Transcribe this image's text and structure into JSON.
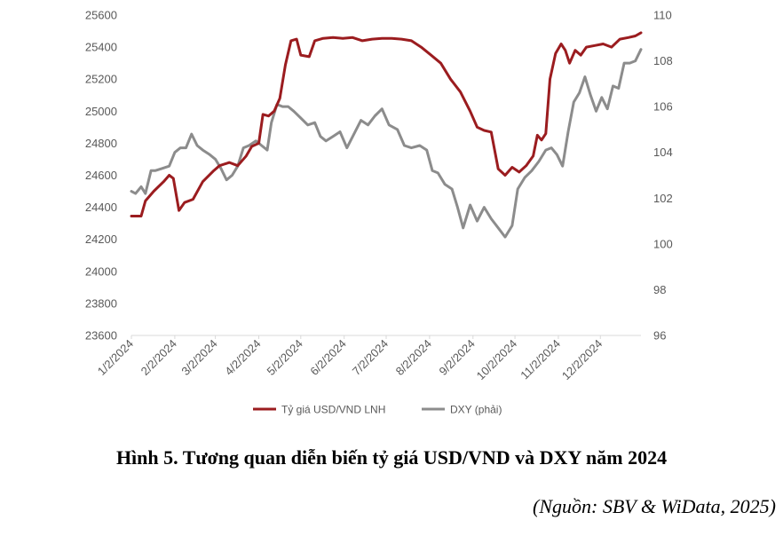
{
  "caption": "Hình 5. Tương quan diễn biến tỷ giá USD/VND và DXY năm 2024",
  "source": "(Nguồn: SBV & WiData, 2025)",
  "chart_data": {
    "type": "line",
    "title": "",
    "grid": false,
    "legend_position": "bottom-center",
    "x_tick_labels": [
      "1/2/2024",
      "2/2/2024",
      "3/2/2024",
      "4/2/2024",
      "5/2/2024",
      "6/2/2024",
      "7/2/2024",
      "8/2/2024",
      "9/2/2024",
      "10/2/2024",
      "11/2/2024",
      "12/2/2024"
    ],
    "x_range": [
      "2024-01-02",
      "2024-12-31"
    ],
    "y_left": {
      "ylim": [
        23600,
        25600
      ],
      "ticks": [
        "23600",
        "23800",
        "24000",
        "24200",
        "24400",
        "24600",
        "24800",
        "25000",
        "25200",
        "25400",
        "25600"
      ]
    },
    "y_right": {
      "ylim": [
        96,
        110
      ],
      "ticks": [
        "96",
        "98",
        "100",
        "102",
        "104",
        "106",
        "108",
        "110"
      ]
    },
    "series": [
      {
        "name": "Tỷ giá USD/VND LNH",
        "axis": "left",
        "color": "#9b1c1f",
        "points": [
          [
            "2024-01-02",
            24345
          ],
          [
            "2024-01-09",
            24345
          ],
          [
            "2024-01-12",
            24440
          ],
          [
            "2024-01-18",
            24500
          ],
          [
            "2024-01-25",
            24560
          ],
          [
            "2024-01-29",
            24600
          ],
          [
            "2024-02-01",
            24580
          ],
          [
            "2024-02-05",
            24380
          ],
          [
            "2024-02-09",
            24430
          ],
          [
            "2024-02-15",
            24450
          ],
          [
            "2024-02-22",
            24560
          ],
          [
            "2024-03-01",
            24630
          ],
          [
            "2024-03-05",
            24660
          ],
          [
            "2024-03-12",
            24680
          ],
          [
            "2024-03-18",
            24660
          ],
          [
            "2024-03-24",
            24720
          ],
          [
            "2024-03-28",
            24780
          ],
          [
            "2024-04-02",
            24800
          ],
          [
            "2024-04-05",
            24980
          ],
          [
            "2024-04-09",
            24970
          ],
          [
            "2024-04-13",
            25000
          ],
          [
            "2024-04-17",
            25080
          ],
          [
            "2024-04-21",
            25290
          ],
          [
            "2024-04-25",
            25440
          ],
          [
            "2024-04-29",
            25450
          ],
          [
            "2024-05-02",
            25350
          ],
          [
            "2024-05-08",
            25340
          ],
          [
            "2024-05-12",
            25440
          ],
          [
            "2024-05-18",
            25455
          ],
          [
            "2024-05-25",
            25460
          ],
          [
            "2024-06-01",
            25455
          ],
          [
            "2024-06-08",
            25460
          ],
          [
            "2024-06-15",
            25440
          ],
          [
            "2024-06-22",
            25450
          ],
          [
            "2024-06-29",
            25455
          ],
          [
            "2024-07-06",
            25455
          ],
          [
            "2024-07-13",
            25450
          ],
          [
            "2024-07-20",
            25440
          ],
          [
            "2024-07-27",
            25400
          ],
          [
            "2024-08-03",
            25350
          ],
          [
            "2024-08-10",
            25300
          ],
          [
            "2024-08-17",
            25200
          ],
          [
            "2024-08-24",
            25120
          ],
          [
            "2024-08-31",
            25000
          ],
          [
            "2024-09-05",
            24900
          ],
          [
            "2024-09-10",
            24880
          ],
          [
            "2024-09-15",
            24870
          ],
          [
            "2024-09-20",
            24640
          ],
          [
            "2024-09-25",
            24600
          ],
          [
            "2024-09-30",
            24650
          ],
          [
            "2024-10-05",
            24620
          ],
          [
            "2024-10-10",
            24660
          ],
          [
            "2024-10-15",
            24720
          ],
          [
            "2024-10-18",
            24850
          ],
          [
            "2024-10-21",
            24820
          ],
          [
            "2024-10-24",
            24860
          ],
          [
            "2024-10-27",
            25200
          ],
          [
            "2024-10-31",
            25360
          ],
          [
            "2024-11-04",
            25420
          ],
          [
            "2024-11-07",
            25380
          ],
          [
            "2024-11-10",
            25300
          ],
          [
            "2024-11-14",
            25380
          ],
          [
            "2024-11-18",
            25350
          ],
          [
            "2024-11-22",
            25400
          ],
          [
            "2024-11-28",
            25410
          ],
          [
            "2024-12-04",
            25420
          ],
          [
            "2024-12-10",
            25400
          ],
          [
            "2024-12-16",
            25450
          ],
          [
            "2024-12-22",
            25460
          ],
          [
            "2024-12-27",
            25470
          ],
          [
            "2024-12-31",
            25490
          ]
        ]
      },
      {
        "name": "DXY (phải)",
        "axis": "right",
        "color": "#8c8c8c",
        "points": [
          [
            "2024-01-02",
            102.3
          ],
          [
            "2024-01-05",
            102.2
          ],
          [
            "2024-01-09",
            102.5
          ],
          [
            "2024-01-12",
            102.2
          ],
          [
            "2024-01-16",
            103.2
          ],
          [
            "2024-01-19",
            103.2
          ],
          [
            "2024-01-24",
            103.3
          ],
          [
            "2024-01-29",
            103.4
          ],
          [
            "2024-02-02",
            104.0
          ],
          [
            "2024-02-06",
            104.2
          ],
          [
            "2024-02-10",
            104.2
          ],
          [
            "2024-02-14",
            104.8
          ],
          [
            "2024-02-18",
            104.3
          ],
          [
            "2024-02-22",
            104.1
          ],
          [
            "2024-02-27",
            103.9
          ],
          [
            "2024-03-02",
            103.7
          ],
          [
            "2024-03-06",
            103.3
          ],
          [
            "2024-03-10",
            102.8
          ],
          [
            "2024-03-14",
            103.0
          ],
          [
            "2024-03-18",
            103.4
          ],
          [
            "2024-03-22",
            104.2
          ],
          [
            "2024-03-26",
            104.3
          ],
          [
            "2024-03-31",
            104.5
          ],
          [
            "2024-04-04",
            104.3
          ],
          [
            "2024-04-08",
            104.1
          ],
          [
            "2024-04-11",
            105.3
          ],
          [
            "2024-04-15",
            106.1
          ],
          [
            "2024-04-19",
            106.0
          ],
          [
            "2024-04-23",
            106.0
          ],
          [
            "2024-04-27",
            105.8
          ],
          [
            "2024-05-02",
            105.5
          ],
          [
            "2024-05-07",
            105.2
          ],
          [
            "2024-05-12",
            105.3
          ],
          [
            "2024-05-16",
            104.7
          ],
          [
            "2024-05-20",
            104.5
          ],
          [
            "2024-05-25",
            104.7
          ],
          [
            "2024-05-30",
            104.9
          ],
          [
            "2024-06-04",
            104.2
          ],
          [
            "2024-06-09",
            104.8
          ],
          [
            "2024-06-14",
            105.4
          ],
          [
            "2024-06-19",
            105.2
          ],
          [
            "2024-06-24",
            105.6
          ],
          [
            "2024-06-29",
            105.9
          ],
          [
            "2024-07-04",
            105.2
          ],
          [
            "2024-07-10",
            105.0
          ],
          [
            "2024-07-15",
            104.3
          ],
          [
            "2024-07-20",
            104.2
          ],
          [
            "2024-07-26",
            104.3
          ],
          [
            "2024-07-31",
            104.1
          ],
          [
            "2024-08-04",
            103.2
          ],
          [
            "2024-08-08",
            103.1
          ],
          [
            "2024-08-13",
            102.6
          ],
          [
            "2024-08-18",
            102.4
          ],
          [
            "2024-08-22",
            101.6
          ],
          [
            "2024-08-26",
            100.7
          ],
          [
            "2024-08-31",
            101.7
          ],
          [
            "2024-09-05",
            101.0
          ],
          [
            "2024-09-10",
            101.6
          ],
          [
            "2024-09-15",
            101.1
          ],
          [
            "2024-09-20",
            100.7
          ],
          [
            "2024-09-25",
            100.3
          ],
          [
            "2024-09-30",
            100.8
          ],
          [
            "2024-10-04",
            102.4
          ],
          [
            "2024-10-09",
            102.9
          ],
          [
            "2024-10-14",
            103.2
          ],
          [
            "2024-10-19",
            103.6
          ],
          [
            "2024-10-24",
            104.1
          ],
          [
            "2024-10-28",
            104.2
          ],
          [
            "2024-11-01",
            103.9
          ],
          [
            "2024-11-05",
            103.4
          ],
          [
            "2024-11-09",
            104.9
          ],
          [
            "2024-11-13",
            106.2
          ],
          [
            "2024-11-17",
            106.6
          ],
          [
            "2024-11-21",
            107.3
          ],
          [
            "2024-11-25",
            106.5
          ],
          [
            "2024-11-29",
            105.8
          ],
          [
            "2024-12-03",
            106.4
          ],
          [
            "2024-12-07",
            105.9
          ],
          [
            "2024-12-11",
            106.9
          ],
          [
            "2024-12-15",
            106.8
          ],
          [
            "2024-12-19",
            107.9
          ],
          [
            "2024-12-23",
            107.9
          ],
          [
            "2024-12-27",
            108.0
          ],
          [
            "2024-12-31",
            108.5
          ]
        ]
      }
    ]
  }
}
